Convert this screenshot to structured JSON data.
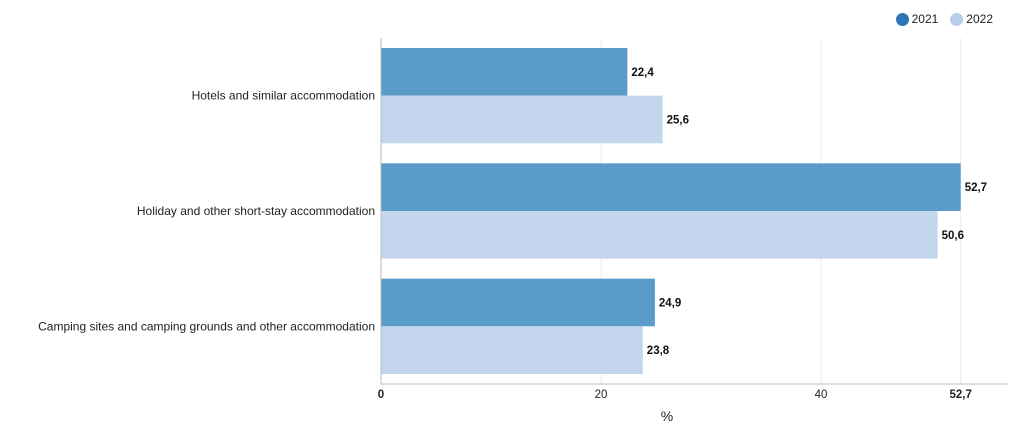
{
  "chart_data": {
    "type": "bar",
    "orientation": "horizontal",
    "categories": [
      "Hotels and similar accommodation",
      "Holiday and other short-stay accommodation",
      "Camping sites and camping grounds and other accommodation"
    ],
    "series": [
      {
        "name": "2021",
        "values": [
          22.4,
          52.7,
          24.9
        ],
        "labels": [
          "22,4",
          "52,7",
          "24,9"
        ],
        "color": "#5b9bc9"
      },
      {
        "name": "2022",
        "values": [
          25.6,
          50.6,
          23.8
        ],
        "labels": [
          "25,6",
          "50,6",
          "23,8"
        ],
        "color": "#c4d6ed"
      }
    ],
    "legend_colors": [
      "#2e75b6",
      "#b7cde9"
    ],
    "xlim": [
      0,
      57
    ],
    "ticks": [
      {
        "value": 0,
        "label": "0",
        "bold": true
      },
      {
        "value": 20,
        "label": "20",
        "bold": false
      },
      {
        "value": 40,
        "label": "40",
        "bold": false
      },
      {
        "value": 52.7,
        "label": "52,7",
        "bold": true
      }
    ],
    "xlabel": "%",
    "legend_position": "top-right",
    "grid": true
  }
}
